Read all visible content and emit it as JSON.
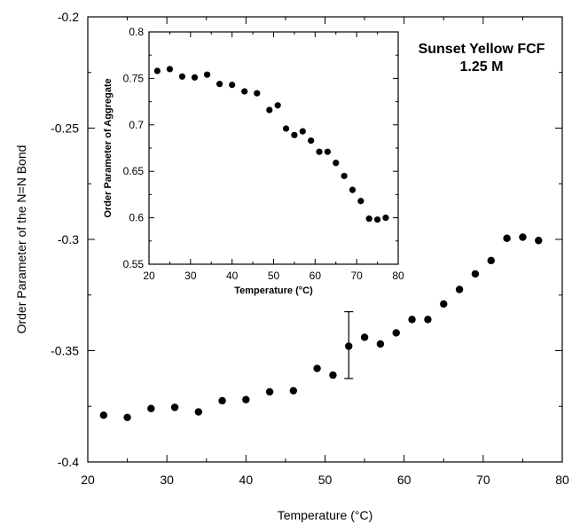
{
  "chart_data": [
    {
      "type": "scatter",
      "xlabel": "Temperature (°C)",
      "ylabel": "Order Parameter of the N=N Bond",
      "xlim": [
        20,
        80
      ],
      "ylim": [
        -0.4,
        -0.2
      ],
      "xticks": [
        "20",
        "30",
        "40",
        "50",
        "60",
        "70",
        "80"
      ],
      "yticks": [
        "-0.2",
        "-0.25",
        "-0.3",
        "-0.35",
        "-0.4"
      ],
      "grid": false,
      "x": [
        22,
        25,
        28,
        31,
        34,
        37,
        40,
        43,
        46,
        49,
        51,
        53,
        55,
        57,
        59,
        61,
        63,
        65,
        67,
        69,
        71,
        73,
        75,
        77
      ],
      "y": [
        -0.379,
        -0.38,
        -0.376,
        -0.3755,
        -0.3775,
        -0.3725,
        -0.372,
        -0.3685,
        -0.368,
        -0.358,
        -0.361,
        -0.348,
        -0.344,
        -0.347,
        -0.342,
        -0.336,
        -0.336,
        -0.329,
        -0.3225,
        -0.3155,
        -0.3095,
        -0.2995,
        -0.299,
        -0.3005
      ],
      "error_bars": [
        {
          "x": 53,
          "y": -0.348,
          "low": -0.3625,
          "high": -0.3325
        }
      ],
      "annotation": [
        "Sunset Yellow FCF",
        "1.25 M"
      ]
    },
    {
      "type": "scatter",
      "xlabel": "Temperature (°C)",
      "ylabel": "Order Parameter of Aggregate",
      "xlim": [
        20,
        80
      ],
      "ylim": [
        0.55,
        0.8
      ],
      "xticks": [
        "20",
        "30",
        "40",
        "50",
        "60",
        "70",
        "80"
      ],
      "yticks": [
        "0.8",
        "0.75",
        "0.7",
        "0.65",
        "0.6",
        "0.55"
      ],
      "grid": false,
      "x": [
        22,
        25,
        28,
        31,
        34,
        37,
        40,
        43,
        46,
        49,
        51,
        53,
        55,
        57,
        59,
        61,
        63,
        65,
        67,
        69,
        71,
        73,
        75,
        77
      ],
      "y": [
        0.758,
        0.76,
        0.752,
        0.751,
        0.754,
        0.744,
        0.743,
        0.736,
        0.734,
        0.716,
        0.721,
        0.696,
        0.689,
        0.693,
        0.683,
        0.671,
        0.671,
        0.659,
        0.645,
        0.63,
        0.618,
        0.599,
        0.598,
        0.6
      ]
    }
  ]
}
